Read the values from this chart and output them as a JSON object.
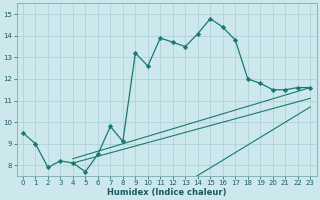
{
  "xlabel": "Humidex (Indice chaleur)",
  "bg_color": "#cce8ec",
  "line_color": "#1a7a6e",
  "grid_color": "#aacdd4",
  "xlim": [
    -0.5,
    23.5
  ],
  "ylim": [
    7.5,
    15.5
  ],
  "xticks": [
    0,
    1,
    2,
    3,
    4,
    5,
    6,
    7,
    8,
    9,
    10,
    11,
    12,
    13,
    14,
    15,
    16,
    17,
    18,
    19,
    20,
    21,
    22,
    23
  ],
  "yticks": [
    8,
    9,
    10,
    11,
    12,
    13,
    14,
    15
  ],
  "main_x": [
    0,
    1,
    2,
    3,
    4,
    5,
    6,
    7,
    8,
    9,
    10,
    11,
    12,
    13,
    14,
    15,
    16,
    17,
    18,
    19,
    20,
    21,
    22,
    23
  ],
  "main_y": [
    9.5,
    9.0,
    7.9,
    8.2,
    8.1,
    7.7,
    8.5,
    9.8,
    9.1,
    13.2,
    12.6,
    13.9,
    13.7,
    13.5,
    14.1,
    14.8,
    14.4,
    13.8,
    12.0,
    11.8,
    11.5,
    11.5,
    11.6,
    11.6
  ],
  "trend_lines": [
    {
      "x": [
        4,
        23
      ],
      "y": [
        8.3,
        11.6
      ]
    },
    {
      "x": [
        4,
        23
      ],
      "y": [
        8.1,
        11.1
      ]
    },
    {
      "x": [
        4,
        23
      ],
      "y": [
        4.0,
        10.7
      ]
    }
  ]
}
